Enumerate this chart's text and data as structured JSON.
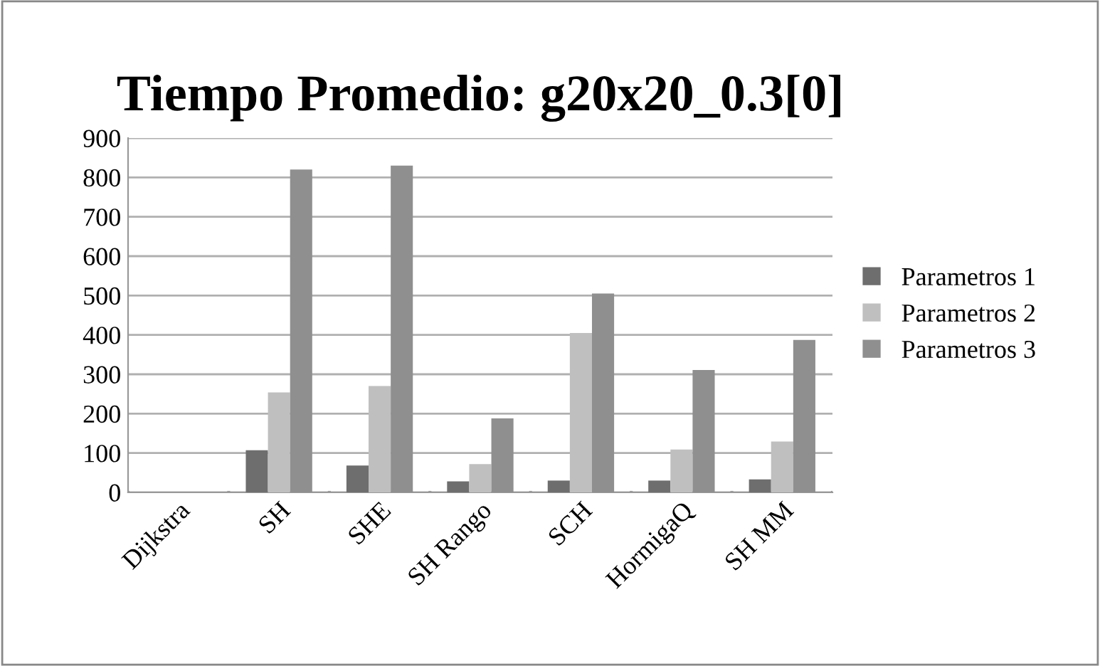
{
  "chart_data": {
    "type": "bar",
    "title": "Tiempo Promedio: g20x20_0.3[0]",
    "categories": [
      "Dijkstra",
      "SH",
      "SHE",
      "SH Rango",
      "SCH",
      "HormigaQ",
      "SH MM"
    ],
    "series": [
      {
        "name": "Parametros 1",
        "color": "#6e6e6e",
        "values": [
          0,
          107,
          68,
          28,
          30,
          30,
          33
        ]
      },
      {
        "name": "Parametros 2",
        "color": "#bfbfbf",
        "values": [
          0,
          254,
          270,
          72,
          405,
          109,
          129
        ]
      },
      {
        "name": "Parametros 3",
        "color": "#8f8f8f",
        "values": [
          0,
          820,
          830,
          188,
          505,
          311,
          387
        ]
      }
    ],
    "ylim": [
      0,
      900
    ],
    "yticks": [
      0,
      100,
      200,
      300,
      400,
      500,
      600,
      700,
      800,
      900
    ],
    "grid": "y",
    "legend": "right"
  }
}
